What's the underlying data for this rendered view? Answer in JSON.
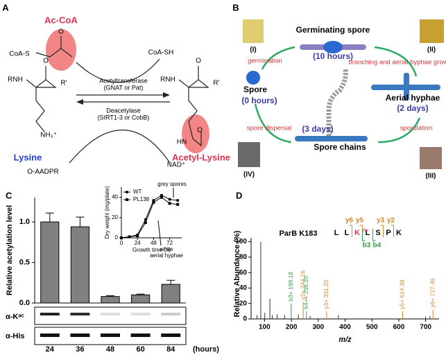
{
  "panel_a": {
    "texts": [
      "A",
      "Ac-CoA",
      "CoA-S",
      "O",
      "CoA-SH",
      "Acetyltransferase",
      "(GNAT or Pat)",
      "Deacetylase",
      "(SIRT1-3 or CobB)",
      "RNH",
      "O",
      "R'",
      "NH₃⁺",
      "Lysine",
      "O-AADPR",
      "NAD⁺",
      "Acetyl-Lysine",
      "RNH",
      "O",
      "R'",
      "HN",
      "O"
    ]
  },
  "panel_b": {
    "texts": [
      "B",
      "Germinating spore",
      "(10 hours)",
      "germination",
      "branching and aerial hyphae growth",
      "Aerial hyphae",
      "(2 days)",
      "sporulation",
      "Spore",
      "(0 hours)",
      "spore dispersal",
      "(3 days)",
      "Spore chains",
      "(I)",
      "(II)",
      "(III)",
      "(IV)"
    ]
  },
  "chart_data": [
    {
      "type": "bar",
      "panel_label": "C",
      "ylabel": "Relative acetylation level",
      "categories": [
        "24",
        "36",
        "48",
        "60",
        "84"
      ],
      "x_unit": "(hours)",
      "values": [
        1.0,
        0.94,
        0.08,
        0.1,
        0.23
      ],
      "errors": [
        0.11,
        0.12,
        0.01,
        0.01,
        0.05
      ],
      "color": "#808080",
      "ylim": [
        0,
        1.3
      ],
      "yticks": [
        {
          "value": 0,
          "label": "0.0"
        },
        {
          "value": 0.5,
          "label": "0.5"
        },
        {
          "value": 1,
          "label": "1.0"
        }
      ],
      "blot_labels": [
        "α-Kᵃᶜ",
        "α-His"
      ]
    },
    {
      "type": "line",
      "xlabel": "Growth time (h)",
      "ylabel": "Dry weight (mg/plate)",
      "x": [
        0,
        12,
        24,
        36,
        48,
        60,
        72,
        84
      ],
      "series": [
        {
          "name": "WT",
          "color": "#000000",
          "marker": "circle",
          "values": [
            0,
            1,
            3,
            18,
            37,
            42,
            38,
            37
          ]
        },
        {
          "name": "PL138",
          "color": "#000000",
          "marker": "square",
          "values": [
            0,
            1,
            2,
            15,
            35,
            40,
            34,
            33
          ]
        }
      ],
      "xlim": [
        0,
        90
      ],
      "ylim": [
        0,
        50
      ],
      "xticks": [
        0,
        24,
        48,
        72
      ],
      "yticks": [
        0,
        20,
        40
      ],
      "annotations": [
        "grey spores",
        "white",
        "aerial hyphae"
      ]
    },
    {
      "type": "spectrum",
      "panel_label": "D",
      "title": "ParB K183",
      "xlabel": "m/z",
      "ylabel": "Relative Abundance (%)",
      "x": [
        72,
        86,
        101,
        120,
        129,
        147,
        175,
        199.18,
        226,
        244.16,
        256.2,
        270,
        331.2,
        375,
        614.38,
        700,
        716,
        727.46
      ],
      "values": [
        5,
        100,
        8,
        26,
        5,
        6,
        5,
        20,
        6,
        22,
        10,
        4,
        10,
        5,
        10,
        3,
        4,
        12
      ],
      "colors": [
        "#333333",
        "#333333",
        "#333333",
        "#333333",
        "#333333",
        "#333333",
        "#333333",
        "#2e9e4a",
        "#333333",
        "#d4862a",
        "#2e9e4a",
        "#333333",
        "#d4862a",
        "#333333",
        "#d4862a",
        "#333333",
        "#333333",
        "#d4862a"
      ],
      "value_labels": [
        null,
        null,
        null,
        null,
        null,
        null,
        null,
        "b3+ 199.18",
        null,
        "y2+ 244.16",
        "b4++ 256.20",
        null,
        "y3+ 331.20",
        null,
        "y5+ 614.38",
        null,
        null,
        "y6+ 727.46"
      ],
      "xlim": [
        50,
        750
      ],
      "ylim": [
        0,
        105
      ],
      "xticks": [
        100,
        200,
        300,
        400,
        500,
        600,
        700
      ],
      "yticks": [
        0,
        20,
        40,
        60,
        80,
        100
      ],
      "sequence": [
        "L",
        "L",
        "K",
        "L",
        "S",
        "P",
        "K"
      ],
      "modification": "Ac",
      "fragment_labels": [
        "y6",
        "y5",
        "y3",
        "y2",
        "b3",
        "b4"
      ]
    }
  ]
}
